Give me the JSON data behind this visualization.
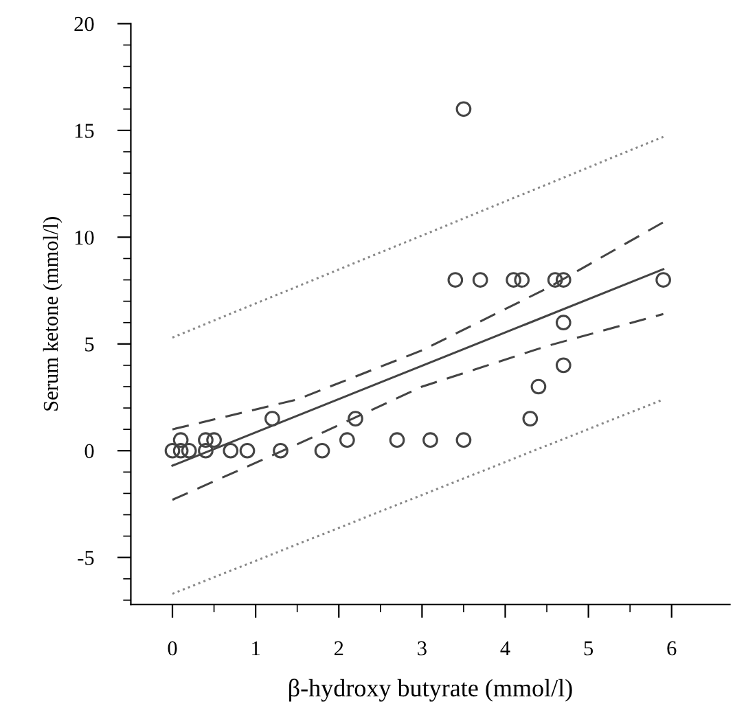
{
  "chart_data": {
    "type": "scatter",
    "xlabel": "β-hydroxy butyrate (mmol/l)",
    "ylabel": "Serum ketone (mmol/l)",
    "xlim": [
      -0.5,
      6.7
    ],
    "ylim": [
      -7.2,
      20
    ],
    "xticks": [
      0,
      {
        "value": 0.5,
        "label": null
      },
      1,
      {
        "value": 1.5,
        "label": null
      },
      2,
      {
        "value": 2.5,
        "label": null
      },
      3,
      {
        "value": 3.5,
        "label": null
      },
      4,
      {
        "value": 4.5,
        "label": null
      },
      5,
      {
        "value": 5.5,
        "label": null
      },
      6
    ],
    "yticks": [
      {
        "value": -7,
        "label": null
      },
      {
        "value": -6,
        "label": null
      },
      -5,
      {
        "value": -4,
        "label": null
      },
      {
        "value": -3,
        "label": null
      },
      {
        "value": -2,
        "label": null
      },
      {
        "value": -1,
        "label": null
      },
      0,
      {
        "value": 1,
        "label": null
      },
      {
        "value": 2,
        "label": null
      },
      {
        "value": 3,
        "label": null
      },
      {
        "value": 4,
        "label": null
      },
      5,
      {
        "value": 6,
        "label": null
      },
      {
        "value": 7,
        "label": null
      },
      {
        "value": 8,
        "label": null
      },
      {
        "value": 9,
        "label": null
      },
      10,
      {
        "value": 11,
        "label": null
      },
      {
        "value": 12,
        "label": null
      },
      {
        "value": 13,
        "label": null
      },
      {
        "value": 14,
        "label": null
      },
      15,
      {
        "value": 16,
        "label": null
      },
      {
        "value": 17,
        "label": null
      },
      {
        "value": 18,
        "label": null
      },
      {
        "value": 19,
        "label": null
      },
      20
    ],
    "grid": false,
    "legend": false,
    "series": [
      {
        "marker": "circle",
        "color": "#444444",
        "x": [
          0,
          0.1,
          0.1,
          0.2,
          0.4,
          0.4,
          0.5,
          0.7,
          0.9,
          1.2,
          1.3,
          1.8,
          2.1,
          2.2,
          2.7,
          3.1,
          3.5,
          3.5,
          3.4,
          3.7,
          4.1,
          4.2,
          4.6,
          4.7,
          4.7,
          4.7,
          4.4,
          4.3,
          5.9
        ],
        "values": [
          0,
          0,
          0.5,
          0,
          0,
          0.5,
          0.5,
          0,
          0,
          1.5,
          0,
          0,
          0.5,
          1.5,
          0.5,
          0.5,
          0.5,
          16,
          8,
          8,
          8,
          8,
          8,
          8,
          6,
          4,
          3,
          1.5,
          8
        ]
      },
      {
        "type": "line",
        "line_style": "solid",
        "color": "#444444",
        "x": [
          0,
          5.9
        ],
        "values": [
          -0.7,
          8.5
        ]
      },
      {
        "type": "line",
        "line_style": "dashed",
        "color": "#444444",
        "x": [
          0,
          1.5,
          3,
          4.5,
          5.9
        ],
        "values": [
          1.0,
          2.4,
          4.7,
          7.6,
          10.7
        ]
      },
      {
        "type": "line",
        "line_style": "dashed",
        "color": "#444444",
        "x": [
          0,
          1.5,
          3,
          4.5,
          5.9
        ],
        "values": [
          -2.3,
          0.3,
          3.0,
          4.9,
          6.4
        ]
      },
      {
        "type": "line",
        "line_style": "dotted",
        "color": "#888888",
        "x": [
          0,
          5.9
        ],
        "values": [
          5.3,
          14.7
        ]
      },
      {
        "type": "line",
        "line_style": "dotted",
        "color": "#888888",
        "x": [
          0,
          5.9
        ],
        "values": [
          -6.7,
          2.4
        ]
      }
    ]
  }
}
